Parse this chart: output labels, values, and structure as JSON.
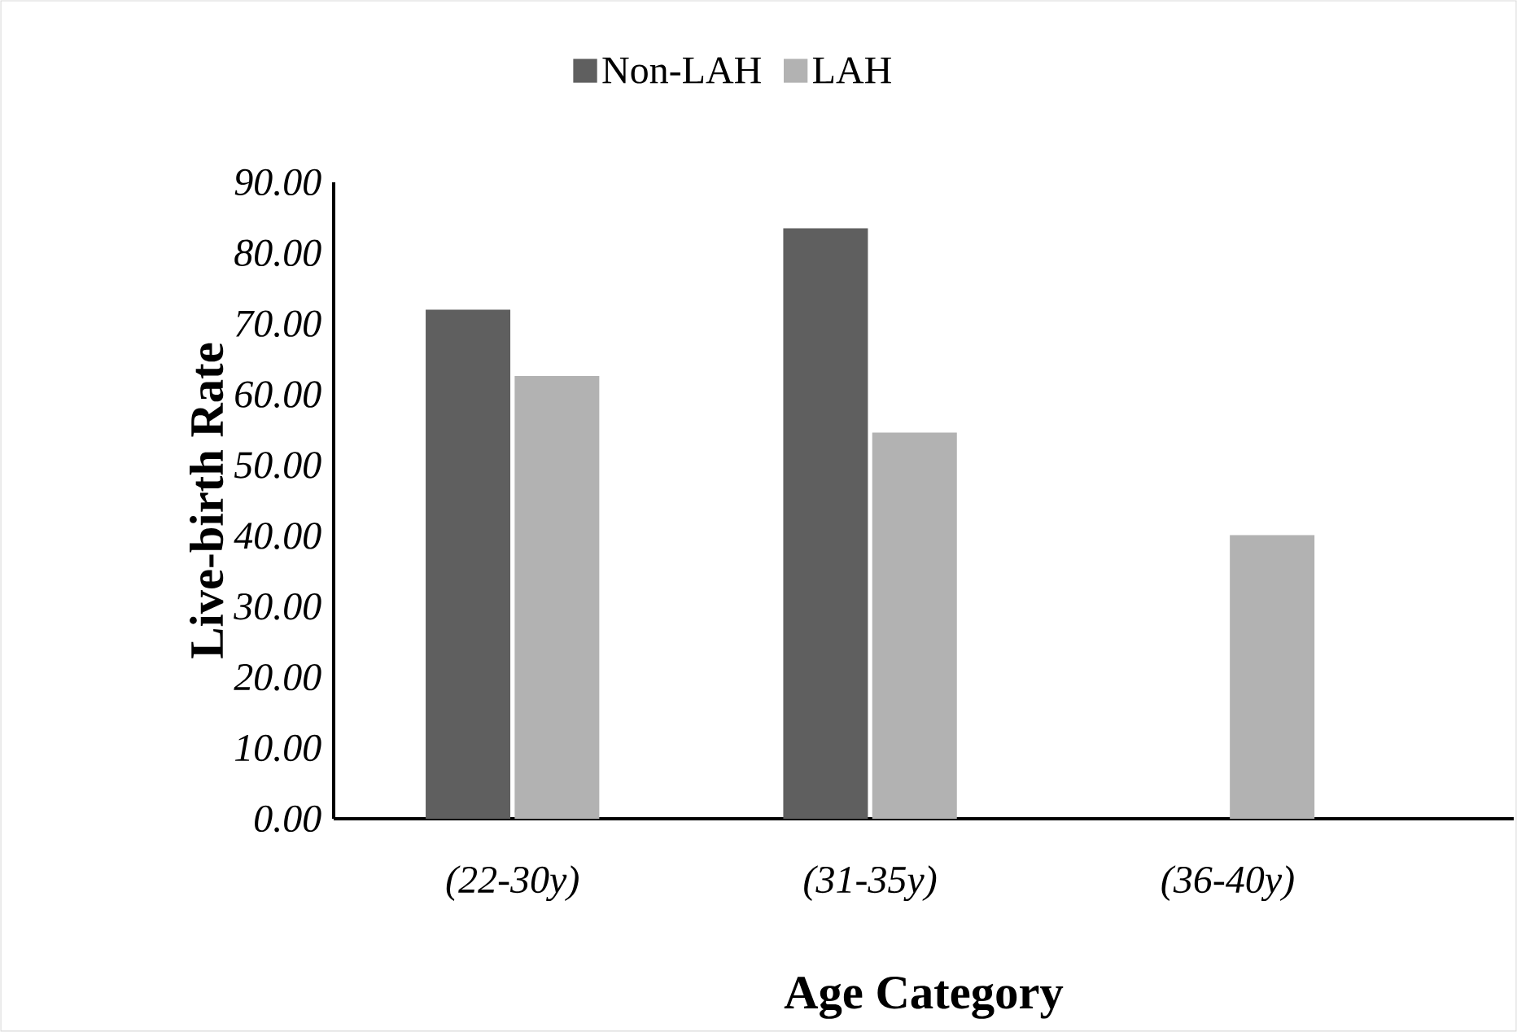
{
  "chart_data": {
    "type": "bar",
    "xlabel": "Age Category",
    "ylabel": "Live-birth Rate",
    "categories": [
      "(22-30y)",
      "(31-35y)",
      "(36-40y)"
    ],
    "series": [
      {
        "name": "Non-LAH",
        "color": "#5f5f5f",
        "values": [
          72.0,
          83.5,
          null
        ]
      },
      {
        "name": "LAH",
        "color": "#b2b2b2",
        "values": [
          62.6,
          54.6,
          40.1
        ]
      }
    ],
    "ylim": [
      0,
      90
    ],
    "yticks": [
      {
        "value": 0,
        "label": "0.00"
      },
      {
        "value": 10,
        "label": "10.00"
      },
      {
        "value": 20,
        "label": "20.00"
      },
      {
        "value": 30,
        "label": "30.00"
      },
      {
        "value": 40,
        "label": "40.00"
      },
      {
        "value": 50,
        "label": "50.00"
      },
      {
        "value": 60,
        "label": "60.00"
      },
      {
        "value": 70,
        "label": "70.00"
      },
      {
        "value": 80,
        "label": "80.00"
      },
      {
        "value": 90,
        "label": "90.00"
      }
    ],
    "grid": false,
    "legend": "top"
  }
}
